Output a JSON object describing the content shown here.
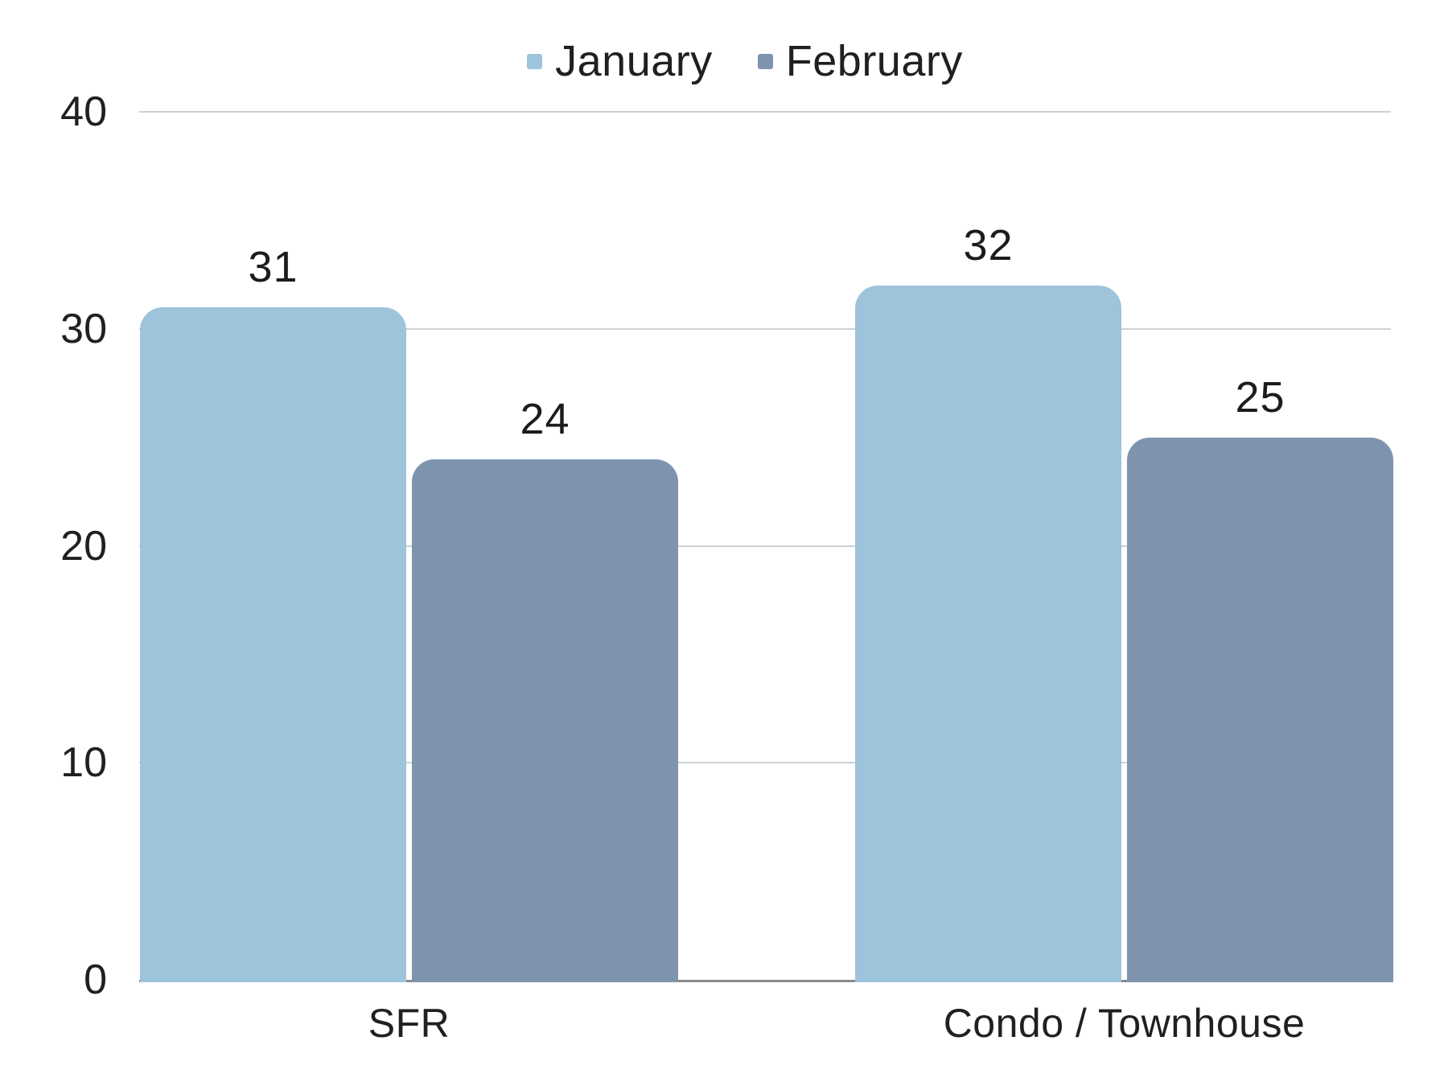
{
  "background_color": "#FFFFFF",
  "text_color": "#202020",
  "gridline_color": "#CDD1D5",
  "axis_line_color": "#8A8A8A",
  "legend": {
    "position": "top"
  },
  "chart_data": {
    "type": "bar",
    "title": "",
    "xlabel": "",
    "ylabel": "",
    "categories": [
      "SFR",
      "Condo / Townhouse"
    ],
    "series": [
      {
        "name": "January",
        "color": "#9EC4DB",
        "values": [
          31,
          32
        ]
      },
      {
        "name": "February",
        "color": "#7E94AE",
        "values": [
          24,
          25
        ]
      }
    ],
    "y_ticks": [
      0,
      10,
      20,
      30,
      40
    ],
    "ylim": [
      0,
      40
    ],
    "grid": true,
    "legend_position": "top",
    "data_labels": true
  }
}
